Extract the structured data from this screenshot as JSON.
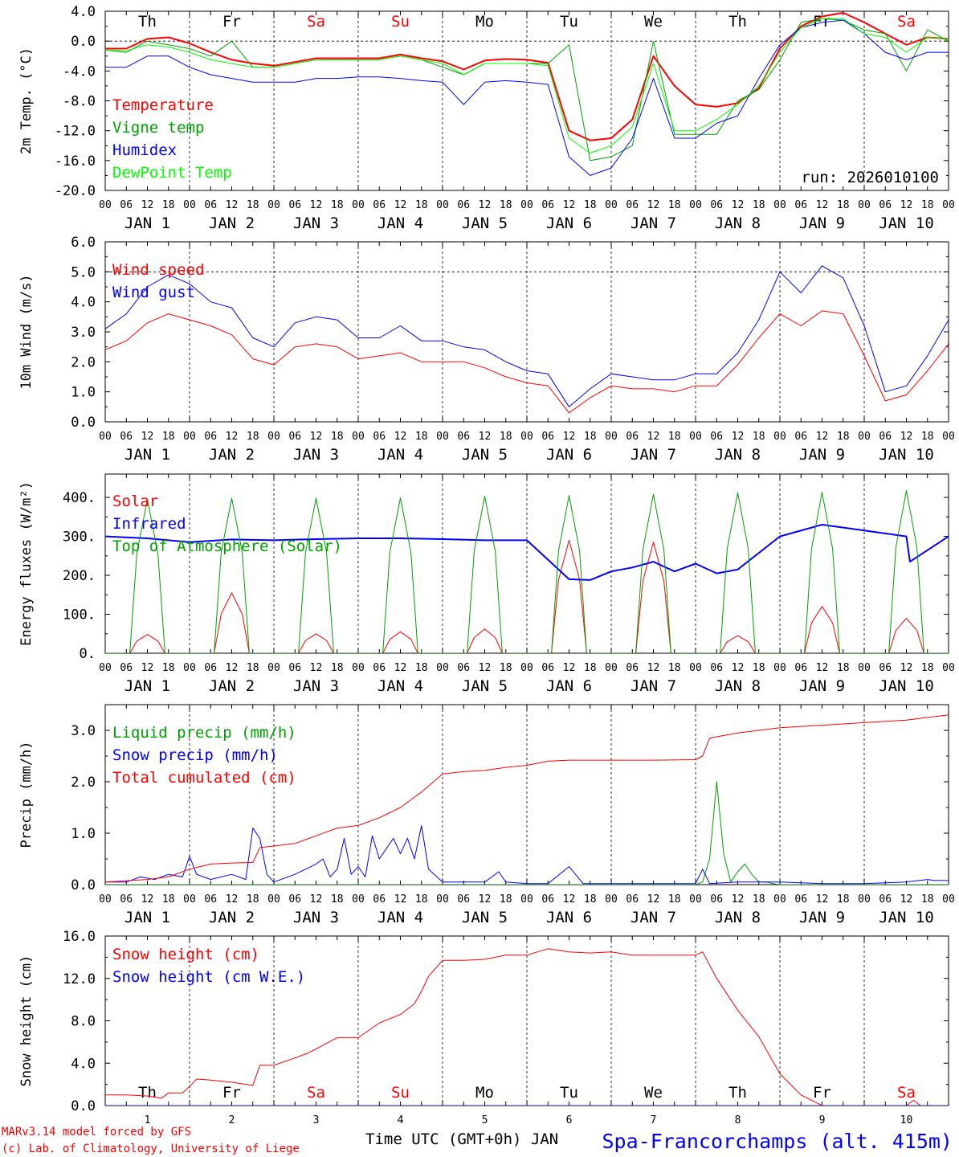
{
  "footer": {
    "credit_line1": "MARv3.14 model forced by GFS",
    "credit_line2": "(c) Lab. of Climatology, University of Liege",
    "xlabel": "Time UTC (GMT+0h) JAN",
    "station": "Spa-Francorchamps (alt. 415m)"
  },
  "days": {
    "weekday_labels": [
      "Th",
      "Fr",
      "Sa",
      "Su",
      "Mo",
      "Tu",
      "We",
      "Th",
      "Fr",
      "Sa"
    ],
    "weekday_colors": [
      "#000000",
      "#000000",
      "#ff0000",
      "#ff0000",
      "#000000",
      "#000000",
      "#000000",
      "#000000",
      "#000000",
      "#ff0000"
    ],
    "date_labels": [
      "JAN  1",
      "JAN  2",
      "JAN  3",
      "JAN  4",
      "JAN  5",
      "JAN  6",
      "JAN  7",
      "JAN  8",
      "JAN  9",
      "JAN 10"
    ],
    "day_numbers": [
      "1",
      "2",
      "3",
      "4",
      "5",
      "6",
      "7",
      "8",
      "9",
      "10"
    ],
    "hour_ticks": [
      "00",
      "06",
      "12",
      "18"
    ],
    "final_tick": "00"
  },
  "chart_data": [
    {
      "id": "temp",
      "type": "line",
      "ylabel": "2m Temp. (°C)",
      "ylim": [
        -20,
        4
      ],
      "yticks": [
        "4.0",
        "0.0",
        "-4.0",
        "-8.0",
        "-12.0",
        "-16.0",
        "-20.0"
      ],
      "ytick_values": [
        4,
        0,
        -4,
        -8,
        -12,
        -16,
        -20
      ],
      "ref_line": 0,
      "show_weekdays": true,
      "annotation": "run: 2026010100",
      "x_hours": [
        0,
        6,
        12,
        18,
        24,
        30,
        36,
        42,
        48,
        54,
        60,
        66,
        72,
        78,
        84,
        90,
        96,
        102,
        108,
        114,
        120,
        126,
        132,
        138,
        144,
        150,
        156,
        162,
        168,
        174,
        180,
        186,
        192,
        198,
        204,
        210,
        216,
        222,
        228,
        234,
        240
      ],
      "series": [
        {
          "name": "Temperature",
          "color": "#ff0000",
          "width": 2,
          "values": [
            -1.0,
            -1.0,
            0.3,
            0.5,
            -0.3,
            -1.5,
            -2.5,
            -3.0,
            -3.3,
            -2.8,
            -2.3,
            -2.3,
            -2.3,
            -2.3,
            -1.8,
            -2.3,
            -2.7,
            -3.8,
            -2.6,
            -2.4,
            -2.5,
            -2.9,
            -12.0,
            -13.3,
            -13.0,
            -10.5,
            -2.0,
            -6.0,
            -8.5,
            -8.8,
            -8.3,
            -6.3,
            -1.0,
            2.0,
            3.3,
            3.8,
            2.5,
            1.0,
            -0.5,
            0.5,
            0.3
          ]
        },
        {
          "name": "Vigne temp",
          "color": "#00a000",
          "width": 1,
          "values": [
            -1.2,
            -1.5,
            0.0,
            -0.5,
            -1.0,
            -2.0,
            0.0,
            -3.5,
            -3.5,
            -3.0,
            -2.5,
            -2.5,
            -2.5,
            -2.5,
            -2.0,
            -2.5,
            -3.5,
            -4.5,
            -3.0,
            -3.0,
            -3.0,
            -3.0,
            -0.5,
            -16.0,
            -15.5,
            -14.0,
            0.0,
            -12.5,
            -12.5,
            -12.5,
            -8.0,
            -6.5,
            -2.5,
            2.5,
            3.0,
            2.8,
            1.5,
            1.0,
            -4.0,
            1.5,
            0.0
          ]
        },
        {
          "name": "Humidex",
          "color": "#0000ff",
          "width": 1,
          "values": [
            -3.5,
            -3.5,
            -2.0,
            -2.0,
            -3.5,
            -4.5,
            -5.0,
            -5.5,
            -5.5,
            -5.5,
            -5.0,
            -5.0,
            -4.8,
            -4.8,
            -5.0,
            -5.3,
            -5.5,
            -8.5,
            -5.5,
            -5.3,
            -5.5,
            -5.8,
            -15.5,
            -18.0,
            -17.0,
            -13.0,
            -5.0,
            -13.0,
            -13.0,
            -11.0,
            -10.0,
            -5.0,
            -0.5,
            1.8,
            2.5,
            2.8,
            1.0,
            -1.5,
            -2.5,
            -1.5,
            -1.5
          ]
        },
        {
          "name": "DewPoint Temp",
          "color": "#00ff00",
          "width": 1,
          "values": [
            -1.2,
            -1.3,
            -0.5,
            -0.8,
            -1.5,
            -2.5,
            -3.0,
            -3.5,
            -3.5,
            -3.0,
            -2.5,
            -2.5,
            -2.5,
            -2.5,
            -2.0,
            -2.5,
            -3.0,
            -4.5,
            -3.0,
            -3.0,
            -3.0,
            -3.3,
            -13.0,
            -15.0,
            -14.0,
            -11.5,
            -3.0,
            -12.0,
            -12.0,
            -10.5,
            -8.5,
            -6.0,
            -1.5,
            1.8,
            3.0,
            3.0,
            1.0,
            0.5,
            -1.5,
            0.5,
            0.3
          ]
        }
      ]
    },
    {
      "id": "wind",
      "type": "line",
      "ylabel": "10m Wind (m/s)",
      "ylim": [
        0,
        6
      ],
      "yticks": [
        "6.0",
        "5.0",
        "4.0",
        "3.0",
        "2.0",
        "1.0",
        "0.0"
      ],
      "ytick_values": [
        6,
        5,
        4,
        3,
        2,
        1,
        0
      ],
      "ref_line": 5,
      "show_weekdays": false,
      "x_hours": [
        0,
        6,
        12,
        18,
        24,
        30,
        36,
        42,
        48,
        54,
        60,
        66,
        72,
        78,
        84,
        90,
        96,
        102,
        108,
        114,
        120,
        126,
        132,
        138,
        144,
        150,
        156,
        162,
        168,
        174,
        180,
        186,
        192,
        198,
        204,
        210,
        216,
        222,
        228,
        234,
        240
      ],
      "series": [
        {
          "name": "Wind speed",
          "color": "#ff0000",
          "width": 1,
          "values": [
            2.4,
            2.7,
            3.3,
            3.6,
            3.4,
            3.2,
            2.9,
            2.1,
            1.9,
            2.5,
            2.6,
            2.5,
            2.1,
            2.2,
            2.3,
            2.0,
            2.0,
            2.0,
            1.8,
            1.5,
            1.3,
            1.2,
            0.3,
            0.8,
            1.2,
            1.1,
            1.1,
            1.0,
            1.2,
            1.2,
            1.9,
            2.8,
            3.6,
            3.2,
            3.7,
            3.6,
            2.2,
            0.7,
            0.9,
            1.7,
            2.6
          ]
        },
        {
          "name": "Wind gust",
          "color": "#0000ff",
          "width": 1,
          "values": [
            3.1,
            3.6,
            4.5,
            4.9,
            4.6,
            4.0,
            3.8,
            2.8,
            2.5,
            3.3,
            3.5,
            3.4,
            2.8,
            2.8,
            3.2,
            2.7,
            2.7,
            2.5,
            2.4,
            2.0,
            1.7,
            1.6,
            0.5,
            1.1,
            1.6,
            1.5,
            1.4,
            1.4,
            1.6,
            1.6,
            2.3,
            3.4,
            5.0,
            4.3,
            5.2,
            4.8,
            3.2,
            1.0,
            1.2,
            2.2,
            3.4
          ]
        }
      ]
    },
    {
      "id": "energy",
      "type": "line",
      "ylabel": "Energy fluxes (W/m²)",
      "ylim": [
        0,
        460
      ],
      "yticks": [
        "400.",
        "300.",
        "200.",
        "100.",
        "0."
      ],
      "ytick_values": [
        400,
        300,
        200,
        100,
        0
      ],
      "show_weekdays": false,
      "diurnal_hours": [
        0,
        7,
        9,
        12,
        15,
        17,
        24
      ],
      "series": [
        {
          "name": "Solar",
          "color": "#ff0000",
          "width": 1,
          "diurnal_peaks": [
            48,
            155,
            50,
            55,
            62,
            290,
            285,
            45,
            120,
            90
          ]
        },
        {
          "name": "Infrared",
          "color": "#0000ff",
          "width": 2,
          "x_hours": [
            0,
            12,
            24,
            36,
            48,
            60,
            72,
            84,
            96,
            108,
            120,
            132,
            138,
            144,
            150,
            156,
            162,
            168,
            174,
            180,
            192,
            204,
            216,
            228,
            229,
            240
          ],
          "values": [
            300,
            295,
            285,
            292,
            290,
            293,
            295,
            295,
            293,
            290,
            290,
            190,
            188,
            210,
            220,
            235,
            210,
            230,
            205,
            215,
            300,
            330,
            315,
            300,
            235,
            300
          ]
        },
        {
          "name": "Top of Atmosphere (Solar)",
          "color": "#00a000",
          "width": 1,
          "diurnal_peaks": [
            395,
            398,
            398,
            399,
            403,
            405,
            408,
            412,
            413,
            418
          ]
        }
      ]
    },
    {
      "id": "precip",
      "type": "line",
      "ylabel": "Precip (mm/h)",
      "ylim": [
        0,
        3.5
      ],
      "yticks": [
        "3.0",
        "2.0",
        "1.0",
        "0.0"
      ],
      "ytick_values": [
        3,
        2,
        1,
        0
      ],
      "show_weekdays": false,
      "series": [
        {
          "name": "Liquid precip (mm/h)",
          "color": "#00a000",
          "width": 1,
          "x_hours": [
            0,
            156,
            168,
            170,
            172,
            174,
            176,
            178,
            180,
            182,
            184,
            186,
            188,
            190,
            192,
            240
          ],
          "values": [
            0,
            0,
            0,
            0.05,
            0.5,
            2.0,
            0.6,
            0.05,
            0.25,
            0.4,
            0.2,
            0.05,
            0.05,
            0.02,
            0,
            0
          ]
        },
        {
          "name": "Snow precip (mm/h)",
          "color": "#0000ff",
          "width": 1,
          "x_hours": [
            0,
            6,
            10,
            14,
            18,
            22,
            24,
            26,
            30,
            36,
            40,
            42,
            44,
            46,
            48,
            54,
            60,
            62,
            64,
            66,
            68,
            70,
            72,
            74,
            76,
            78,
            80,
            82,
            84,
            86,
            88,
            90,
            92,
            96,
            102,
            108,
            112,
            114,
            120,
            126,
            132,
            136,
            138,
            140,
            144,
            156,
            168,
            170,
            172,
            180,
            192,
            204,
            216,
            228,
            234,
            236,
            240
          ],
          "values": [
            0.05,
            0.05,
            0.15,
            0.1,
            0.2,
            0.15,
            0.55,
            0.2,
            0.1,
            0.2,
            0.1,
            1.1,
            0.9,
            0.2,
            0.05,
            0.2,
            0.4,
            0.5,
            0.15,
            0.3,
            0.9,
            0.2,
            0.35,
            0.15,
            0.95,
            0.5,
            0.7,
            0.9,
            0.6,
            0.9,
            0.5,
            1.15,
            0.3,
            0.05,
            0.05,
            0.05,
            0.25,
            0.05,
            0.02,
            0.02,
            0.35,
            0.02,
            0.02,
            0.02,
            0.02,
            0.02,
            0.02,
            0.3,
            0.02,
            0.05,
            0.05,
            0.02,
            0.02,
            0.05,
            0.1,
            0.08,
            0.08
          ]
        },
        {
          "name": "Total cumulated (cm)",
          "color": "#ff0000",
          "width": 1,
          "x_hours": [
            0,
            12,
            18,
            24,
            30,
            36,
            42,
            44,
            48,
            54,
            60,
            66,
            72,
            78,
            84,
            90,
            96,
            102,
            108,
            114,
            120,
            126,
            132,
            144,
            156,
            168,
            170,
            172,
            180,
            192,
            204,
            216,
            228,
            240
          ],
          "values": [
            0.05,
            0.1,
            0.15,
            0.3,
            0.4,
            0.42,
            0.43,
            0.72,
            0.75,
            0.8,
            0.95,
            1.1,
            1.15,
            1.3,
            1.5,
            1.8,
            2.15,
            2.2,
            2.22,
            2.28,
            2.32,
            2.4,
            2.42,
            2.42,
            2.42,
            2.43,
            2.5,
            2.85,
            2.95,
            3.05,
            3.1,
            3.15,
            3.2,
            3.3
          ]
        }
      ]
    },
    {
      "id": "snow",
      "type": "line",
      "ylabel": "Snow height (cm)",
      "ylim": [
        0,
        16
      ],
      "yticks": [
        "16.0",
        "12.0",
        "8.0",
        "4.0",
        "0.0"
      ],
      "ytick_values": [
        16,
        12,
        8,
        4,
        0
      ],
      "show_weekdays": true,
      "weekdays_bottom": true,
      "series": [
        {
          "name": "Snow height (cm)",
          "color": "#ff0000",
          "width": 1,
          "x_hours": [
            0,
            6,
            12,
            16,
            18,
            22,
            24,
            26,
            30,
            36,
            42,
            44,
            48,
            54,
            58,
            62,
            66,
            72,
            78,
            84,
            88,
            90,
            92,
            96,
            102,
            108,
            114,
            120,
            126,
            132,
            138,
            144,
            150,
            156,
            168,
            170,
            174,
            180,
            186,
            192,
            198,
            204,
            216,
            228,
            230,
            232,
            234,
            240
          ],
          "values": [
            1.0,
            1.0,
            0.9,
            0.7,
            1.2,
            1.2,
            1.8,
            2.5,
            2.4,
            2.2,
            1.9,
            3.8,
            3.8,
            4.5,
            5.0,
            5.7,
            6.4,
            6.4,
            7.8,
            8.6,
            9.6,
            10.8,
            12.2,
            13.7,
            13.7,
            13.8,
            14.2,
            14.2,
            14.8,
            14.5,
            14.4,
            14.5,
            14.2,
            14.2,
            14.2,
            14.5,
            12.0,
            9.0,
            6.5,
            3.0,
            1.0,
            0.0,
            0.0,
            0.0,
            0.5,
            0.0,
            0.0,
            0.0
          ]
        },
        {
          "name": "Snow height (cm W.E.)",
          "color": "#0000ff",
          "width": 1,
          "x_hours": [
            0,
            240
          ],
          "values": [
            0,
            0
          ]
        }
      ]
    }
  ]
}
